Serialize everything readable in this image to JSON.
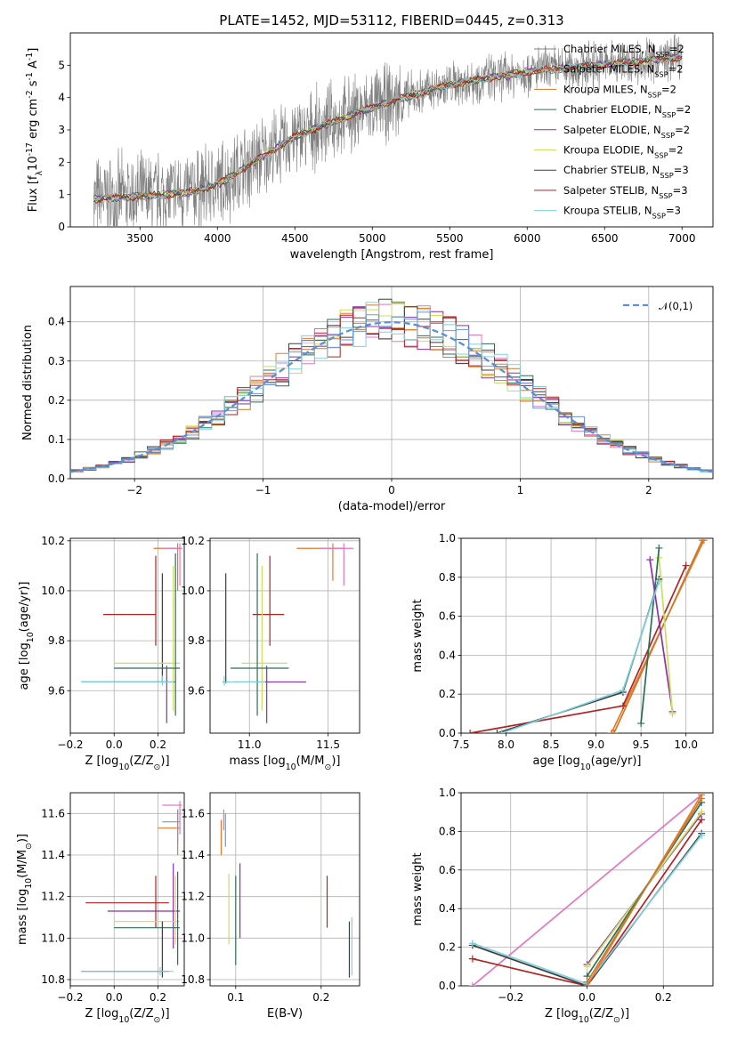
{
  "chart_data": [
    {
      "type": "line",
      "title": "PLATE=1452, MJD=53112, FIBERID=0445, z=0.313",
      "xlabel": "wavelength [Angstrom, rest frame]",
      "ylabel": "Flux [f$_\\lambda$10$^{-17}$ erg cm$^{-2}$ s$^{-1}$ A$^{-1}$]",
      "xlim": [
        3050,
        7200
      ],
      "ylim": [
        0,
        6
      ],
      "xticks": [
        3500,
        4000,
        4500,
        5000,
        5500,
        6000,
        6500,
        7000
      ],
      "yticks": [
        0,
        1,
        2,
        3,
        4,
        5
      ],
      "series": [
        {
          "name": "Chabrier MILES, N$_{SSP}$=2"
        },
        {
          "name": "Salpeter MILES, N$_{SSP}$=2"
        },
        {
          "name": "Kroupa MILES, N$_{SSP}$=2"
        },
        {
          "name": "Chabrier ELODIE, N$_{SSP}$=2"
        },
        {
          "name": "Salpeter ELODIE, N$_{SSP}$=2"
        },
        {
          "name": "Kroupa ELODIE, N$_{SSP}$=2"
        },
        {
          "name": "Chabrier STELIB, N$_{SSP}$=3"
        },
        {
          "name": "Salpeter STELIB, N$_{SSP}$=3"
        },
        {
          "name": "Kroupa STELIB, N$_{SSP}$=3"
        }
      ],
      "legend": "right",
      "grid": false
    },
    {
      "type": "line",
      "xlabel": "(data-model)/error",
      "ylabel": "Normed distribution",
      "xlim": [
        -2.5,
        2.5
      ],
      "ylim": [
        0,
        0.49
      ],
      "xticks": [
        -2,
        -1,
        0,
        1,
        2
      ],
      "yticks": [
        0.0,
        0.1,
        0.2,
        0.3,
        0.4
      ],
      "series": [
        {
          "name": "$\\mathcal{N}(0,1)$"
        }
      ],
      "legend": "top-right",
      "grid": true
    },
    {
      "type": "scatter",
      "xlabel": "Z [log$_{10}$(Z/Z$_\\odot$)]",
      "ylabel": "age  [log$_{10}$(age/yr)]",
      "xlim": [
        -0.2,
        0.32
      ],
      "ylim": [
        9.43,
        10.21
      ],
      "xticks": [
        -0.2,
        0.0,
        0.2
      ],
      "yticks": [
        9.6,
        9.8,
        10.0,
        10.2
      ],
      "grid": true
    },
    {
      "type": "scatter",
      "xlabel": "mass [log$_{10}$(M/M$_\\odot$)]",
      "xlim": [
        10.75,
        11.7
      ],
      "ylim": [
        9.43,
        10.21
      ],
      "xticks": [
        11.0,
        11.5
      ],
      "yticks": [
        9.6,
        9.8,
        10.0,
        10.2
      ],
      "grid": true
    },
    {
      "type": "line",
      "xlabel": "age  [log$_{10}$(age/yr)]",
      "ylabel": "mass weight",
      "xlim": [
        7.5,
        10.3
      ],
      "ylim": [
        0,
        1
      ],
      "xticks": [
        7.5,
        8.0,
        8.5,
        9.0,
        9.5,
        10.0
      ],
      "yticks": [
        0.0,
        0.2,
        0.4,
        0.6,
        0.8,
        1.0
      ],
      "grid": true
    },
    {
      "type": "scatter",
      "xlabel": "Z [log$_{10}$(Z/Z$_\\odot$)]",
      "ylabel": "mass [log$_{10}$(M/M$_\\odot$)]",
      "xlim": [
        -0.2,
        0.32
      ],
      "ylim": [
        10.77,
        11.7
      ],
      "xticks": [
        -0.2,
        0.0,
        0.2
      ],
      "yticks": [
        10.8,
        11.0,
        11.2,
        11.4,
        11.6
      ],
      "grid": true
    },
    {
      "type": "scatter",
      "xlabel": "E(B-V)",
      "xlim": [
        0.07,
        0.245
      ],
      "ylim": [
        10.77,
        11.7
      ],
      "xticks": [
        0.1,
        0.2
      ],
      "yticks": [
        10.8,
        11.0,
        11.2,
        11.4,
        11.6
      ],
      "grid": true
    },
    {
      "type": "line",
      "xlabel": "Z [log$_{10}$(Z/Z$_\\odot$)]",
      "ylabel": "mass weight",
      "xlim": [
        -0.33,
        0.33
      ],
      "ylim": [
        0,
        1
      ],
      "xticks": [
        -0.2,
        0.0,
        0.2
      ],
      "yticks": [
        0.0,
        0.2,
        0.4,
        0.6,
        0.8,
        1.0
      ],
      "grid": true
    }
  ]
}
